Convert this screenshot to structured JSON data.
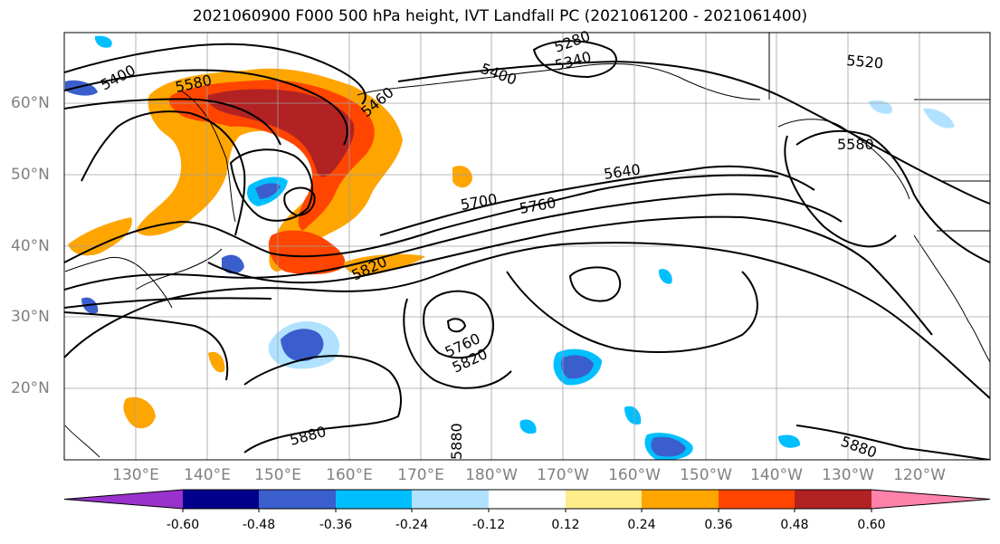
{
  "title": "2021060900 F000 500 hPa height, IVT Landfall PC (2021061200 - 2021061400)",
  "lat_labels": [
    "60°N",
    "50°N",
    "40°N",
    "30°N",
    "20°N"
  ],
  "lon_labels": [
    "130°E",
    "140°E",
    "150°E",
    "160°E",
    "170°E",
    "180°W",
    "170°W",
    "160°W",
    "150°W",
    "140°W",
    "130°W",
    "120°W"
  ],
  "contour_labels": [
    "5400",
    "5580",
    "5460",
    "5400",
    "5340",
    "5280",
    "5520",
    "5580",
    "5640",
    "5700",
    "5760",
    "5820",
    "5760",
    "5820",
    "5880",
    "5880",
    "5880"
  ],
  "colorbar": {
    "ticks": [
      "-0.60",
      "-0.48",
      "-0.36",
      "-0.24",
      "-0.12",
      "0.12",
      "0.24",
      "0.36",
      "0.48",
      "0.60"
    ],
    "colors": [
      "#9932cc",
      "#00008b",
      "#3a5fcd",
      "#00bfff",
      "#b0e2ff",
      "#ffffff",
      "#ffec8b",
      "#ffa500",
      "#ff4500",
      "#b22222",
      "#ff82ab"
    ]
  }
}
